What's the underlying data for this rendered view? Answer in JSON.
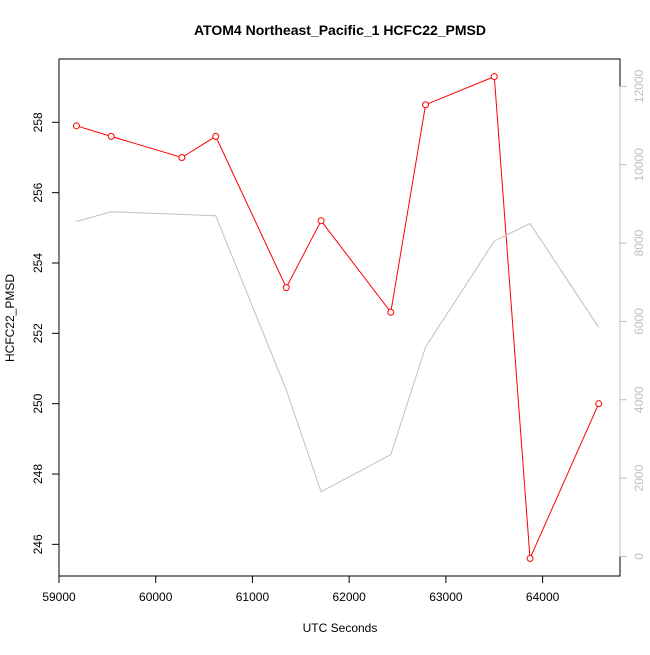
{
  "chart_data": {
    "type": "line",
    "title": "ATOM4 Northeast_Pacific_1 HCFC22_PMSD",
    "xlabel": "UTC Seconds",
    "ylabel": "HCFC22_PMSD",
    "xlim": [
      59000,
      64800
    ],
    "ylim": [
      245.1,
      259.8
    ],
    "y2lim": [
      -500,
      12700
    ],
    "x_ticks": [
      59000,
      60000,
      61000,
      62000,
      63000,
      64000
    ],
    "y_ticks": [
      246,
      248,
      250,
      252,
      254,
      256,
      258
    ],
    "y2_ticks": [
      0,
      2000,
      4000,
      6000,
      8000,
      10000,
      12000
    ],
    "grid": false,
    "colors": {
      "primary": "#ff0000",
      "secondary": "#c0c0c0",
      "axis": "#000000"
    },
    "series": [
      {
        "axis": "left",
        "style": "line-with-open-circles",
        "x": [
          59180,
          59540,
          60270,
          60620,
          61350,
          61710,
          62430,
          62790,
          63500,
          63870,
          64580
        ],
        "values": [
          257.9,
          257.6,
          257.0,
          257.6,
          253.3,
          255.2,
          252.6,
          258.5,
          259.3,
          245.6,
          250.0
        ]
      },
      {
        "axis": "right",
        "style": "line",
        "x": [
          59180,
          59540,
          60620,
          61350,
          61710,
          62430,
          62790,
          63500,
          63870,
          64580
        ],
        "values": [
          8550,
          8800,
          8700,
          4250,
          1650,
          2600,
          5350,
          8050,
          8500,
          5850
        ]
      }
    ]
  }
}
